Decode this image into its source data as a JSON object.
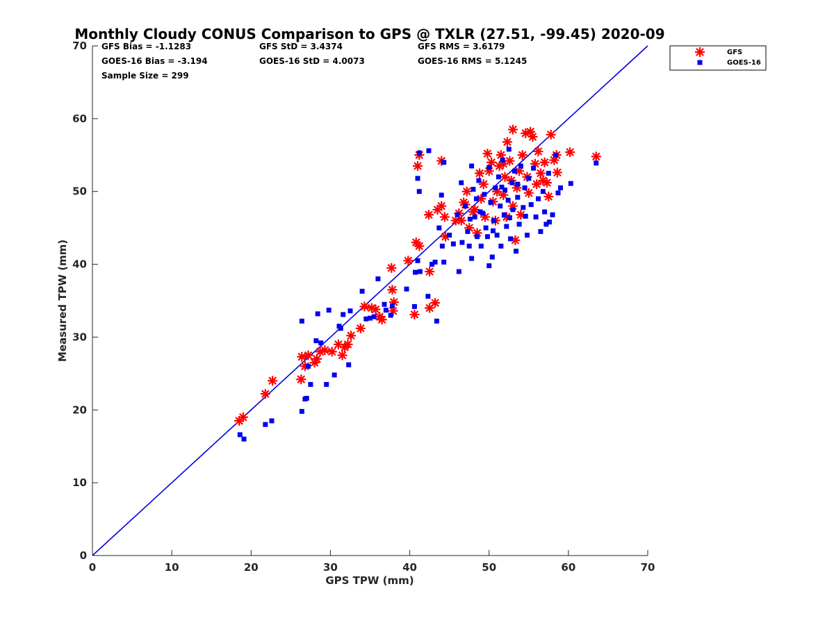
{
  "chart_data": {
    "type": "scatter",
    "title": "Monthly Cloudy CONUS Comparison to GPS @ TXLR (27.51, -99.45) 2020-09",
    "xlabel": "GPS TPW (mm)",
    "ylabel": "Measured TPW (mm)",
    "xlim": [
      0,
      70
    ],
    "ylim": [
      0,
      70
    ],
    "xticks": [
      0,
      10,
      20,
      30,
      40,
      50,
      60,
      70
    ],
    "yticks": [
      0,
      10,
      20,
      30,
      40,
      50,
      60,
      70
    ],
    "grid": false,
    "legend_position": "top-right",
    "stats": [
      {
        "text": "GFS Bias = -1.1283"
      },
      {
        "text": "GFS StD = 3.4374"
      },
      {
        "text": "GFS RMS = 3.6179"
      },
      {
        "text": "GOES-16 Bias = -3.194"
      },
      {
        "text": "GOES-16 StD = 4.0073"
      },
      {
        "text": "GOES-16 RMS = 5.1245"
      },
      {
        "text": "Sample Size = 299"
      }
    ],
    "reference_line": {
      "x": [
        0,
        70
      ],
      "y": [
        0,
        70
      ],
      "color": "#0000dd"
    },
    "series": [
      {
        "name": "GFS",
        "marker": "asterisk",
        "color": "#ff0000",
        "points": [
          [
            18.5,
            18.5
          ],
          [
            19.0,
            19.0
          ],
          [
            21.8,
            22.2
          ],
          [
            22.7,
            24.0
          ],
          [
            26.3,
            24.2
          ],
          [
            26.4,
            27.3
          ],
          [
            26.8,
            26.0
          ],
          [
            27.2,
            27.5
          ],
          [
            28.0,
            26.5
          ],
          [
            28.3,
            27.0
          ],
          [
            28.7,
            28.0
          ],
          [
            29.3,
            28.2
          ],
          [
            30.2,
            28.0
          ],
          [
            31.0,
            29.0
          ],
          [
            31.5,
            27.5
          ],
          [
            31.8,
            28.6
          ],
          [
            32.2,
            29.0
          ],
          [
            32.6,
            30.2
          ],
          [
            33.8,
            31.2
          ],
          [
            34.3,
            34.2
          ],
          [
            35.2,
            34.0
          ],
          [
            35.7,
            33.8
          ],
          [
            36.2,
            32.8
          ],
          [
            36.5,
            32.4
          ],
          [
            37.8,
            36.5
          ],
          [
            37.9,
            33.6
          ],
          [
            38.0,
            34.8
          ],
          [
            37.7,
            39.5
          ],
          [
            39.8,
            40.5
          ],
          [
            40.6,
            33.1
          ],
          [
            40.8,
            43.0
          ],
          [
            41.2,
            42.5
          ],
          [
            42.5,
            34.0
          ],
          [
            42.5,
            39.0
          ],
          [
            43.2,
            34.7
          ],
          [
            41.0,
            53.5
          ],
          [
            41.2,
            55.0
          ],
          [
            42.4,
            46.8
          ],
          [
            44.0,
            54.2
          ],
          [
            43.5,
            47.5
          ],
          [
            44.0,
            48.0
          ],
          [
            44.4,
            46.5
          ],
          [
            44.5,
            43.8
          ],
          [
            45.8,
            46.0
          ],
          [
            46.2,
            47.0
          ],
          [
            46.8,
            48.5
          ],
          [
            47.2,
            50.0
          ],
          [
            47.5,
            45.0
          ],
          [
            48.0,
            47.2
          ],
          [
            48.5,
            44.3
          ],
          [
            48.8,
            52.5
          ],
          [
            49.3,
            51.0
          ],
          [
            49.8,
            55.2
          ],
          [
            50.0,
            52.8
          ],
          [
            50.5,
            48.6
          ],
          [
            50.8,
            46.0
          ],
          [
            51.0,
            50.0
          ],
          [
            51.3,
            53.5
          ],
          [
            51.5,
            55.0
          ],
          [
            51.8,
            49.5
          ],
          [
            52.0,
            52.0
          ],
          [
            52.2,
            46.5
          ],
          [
            52.3,
            56.8
          ],
          [
            52.6,
            54.2
          ],
          [
            52.8,
            51.5
          ],
          [
            53.0,
            58.5
          ],
          [
            53.0,
            48.0
          ],
          [
            53.3,
            43.3
          ],
          [
            53.5,
            50.5
          ],
          [
            53.8,
            52.8
          ],
          [
            54.0,
            46.8
          ],
          [
            54.2,
            55.0
          ],
          [
            54.6,
            58.0
          ],
          [
            54.8,
            52.0
          ],
          [
            55.0,
            49.8
          ],
          [
            55.2,
            58.2
          ],
          [
            55.5,
            57.5
          ],
          [
            55.8,
            53.8
          ],
          [
            56.0,
            51.0
          ],
          [
            56.2,
            55.5
          ],
          [
            56.5,
            52.5
          ],
          [
            56.8,
            51.5
          ],
          [
            57.0,
            54.0
          ],
          [
            57.3,
            51.2
          ],
          [
            57.5,
            49.3
          ],
          [
            57.8,
            57.8
          ],
          [
            58.2,
            54.3
          ],
          [
            58.5,
            55.0
          ],
          [
            58.6,
            52.6
          ],
          [
            60.2,
            55.4
          ],
          [
            63.5,
            54.8
          ],
          [
            47.0,
            48.2
          ],
          [
            49.0,
            49.0
          ],
          [
            50.3,
            54.0
          ],
          [
            51.8,
            53.8
          ],
          [
            48.2,
            47.5
          ],
          [
            46.5,
            46.0
          ],
          [
            49.5,
            46.5
          ]
        ]
      },
      {
        "name": "GOES-16",
        "marker": "square",
        "color": "#0000ee",
        "points": [
          [
            18.6,
            16.6
          ],
          [
            19.1,
            16.0
          ],
          [
            21.8,
            18.0
          ],
          [
            22.6,
            18.5
          ],
          [
            26.4,
            32.2
          ],
          [
            26.4,
            19.8
          ],
          [
            26.8,
            21.5
          ],
          [
            27.0,
            21.6
          ],
          [
            27.5,
            23.5
          ],
          [
            27.2,
            26.0
          ],
          [
            28.2,
            29.5
          ],
          [
            28.4,
            33.2
          ],
          [
            28.8,
            29.2
          ],
          [
            29.5,
            23.5
          ],
          [
            29.8,
            33.7
          ],
          [
            30.5,
            24.8
          ],
          [
            31.1,
            31.5
          ],
          [
            31.3,
            31.2
          ],
          [
            31.6,
            33.1
          ],
          [
            32.3,
            26.2
          ],
          [
            32.5,
            33.6
          ],
          [
            34.0,
            36.3
          ],
          [
            34.5,
            32.5
          ],
          [
            35.0,
            32.6
          ],
          [
            35.5,
            32.8
          ],
          [
            36.0,
            38.0
          ],
          [
            36.8,
            34.5
          ],
          [
            37.0,
            33.7
          ],
          [
            37.6,
            33.0
          ],
          [
            37.8,
            34.3
          ],
          [
            39.6,
            36.6
          ],
          [
            40.6,
            34.2
          ],
          [
            40.7,
            38.9
          ],
          [
            41.0,
            51.8
          ],
          [
            41.2,
            50.0
          ],
          [
            41.2,
            55.3
          ],
          [
            42.4,
            55.6
          ],
          [
            41.3,
            39.0
          ],
          [
            41.0,
            40.5
          ],
          [
            42.3,
            35.6
          ],
          [
            43.4,
            32.2
          ],
          [
            43.2,
            40.3
          ],
          [
            42.8,
            40.0
          ],
          [
            43.7,
            45.0
          ],
          [
            44.0,
            49.5
          ],
          [
            44.1,
            42.5
          ],
          [
            44.3,
            54.0
          ],
          [
            44.3,
            40.3
          ],
          [
            45.0,
            44.0
          ],
          [
            45.5,
            42.8
          ],
          [
            46.0,
            46.8
          ],
          [
            46.2,
            39.0
          ],
          [
            46.5,
            51.2
          ],
          [
            46.6,
            43.0
          ],
          [
            47.0,
            48.0
          ],
          [
            47.3,
            44.5
          ],
          [
            47.5,
            42.5
          ],
          [
            47.8,
            53.5
          ],
          [
            47.8,
            40.8
          ],
          [
            48.0,
            50.3
          ],
          [
            48.2,
            46.5
          ],
          [
            48.5,
            43.8
          ],
          [
            48.7,
            51.5
          ],
          [
            48.9,
            47.2
          ],
          [
            49.0,
            42.5
          ],
          [
            49.4,
            49.6
          ],
          [
            49.6,
            45.0
          ],
          [
            49.8,
            43.8
          ],
          [
            50.0,
            39.8
          ],
          [
            50.0,
            53.3
          ],
          [
            50.2,
            48.5
          ],
          [
            50.4,
            41.0
          ],
          [
            50.6,
            46.0
          ],
          [
            50.8,
            50.5
          ],
          [
            51.0,
            44.0
          ],
          [
            51.2,
            52.0
          ],
          [
            51.4,
            48.0
          ],
          [
            51.5,
            42.5
          ],
          [
            51.7,
            54.3
          ],
          [
            51.9,
            46.8
          ],
          [
            52.0,
            50.2
          ],
          [
            52.2,
            45.2
          ],
          [
            52.4,
            48.8
          ],
          [
            52.5,
            55.8
          ],
          [
            52.7,
            43.5
          ],
          [
            52.9,
            51.2
          ],
          [
            53.0,
            47.5
          ],
          [
            53.2,
            52.8
          ],
          [
            53.4,
            41.8
          ],
          [
            53.6,
            49.2
          ],
          [
            53.8,
            45.5
          ],
          [
            54.0,
            53.5
          ],
          [
            54.3,
            47.8
          ],
          [
            54.5,
            50.5
          ],
          [
            54.8,
            44.0
          ],
          [
            55.0,
            51.8
          ],
          [
            55.3,
            48.2
          ],
          [
            55.6,
            53.2
          ],
          [
            55.9,
            46.5
          ],
          [
            56.2,
            49.0
          ],
          [
            56.5,
            44.5
          ],
          [
            56.8,
            50.0
          ],
          [
            57.0,
            47.2
          ],
          [
            57.2,
            45.5
          ],
          [
            57.6,
            45.8
          ],
          [
            58.0,
            46.8
          ],
          [
            58.4,
            55.0
          ],
          [
            58.7,
            49.8
          ],
          [
            59.0,
            50.5
          ],
          [
            60.3,
            51.1
          ],
          [
            63.5,
            53.9
          ],
          [
            57.5,
            52.5
          ],
          [
            50.5,
            44.6
          ],
          [
            49.2,
            47.0
          ],
          [
            51.6,
            50.6
          ],
          [
            53.6,
            51.0
          ],
          [
            48.4,
            49.0
          ],
          [
            47.6,
            46.2
          ],
          [
            52.6,
            46.4
          ],
          [
            54.6,
            46.6
          ]
        ]
      }
    ]
  }
}
